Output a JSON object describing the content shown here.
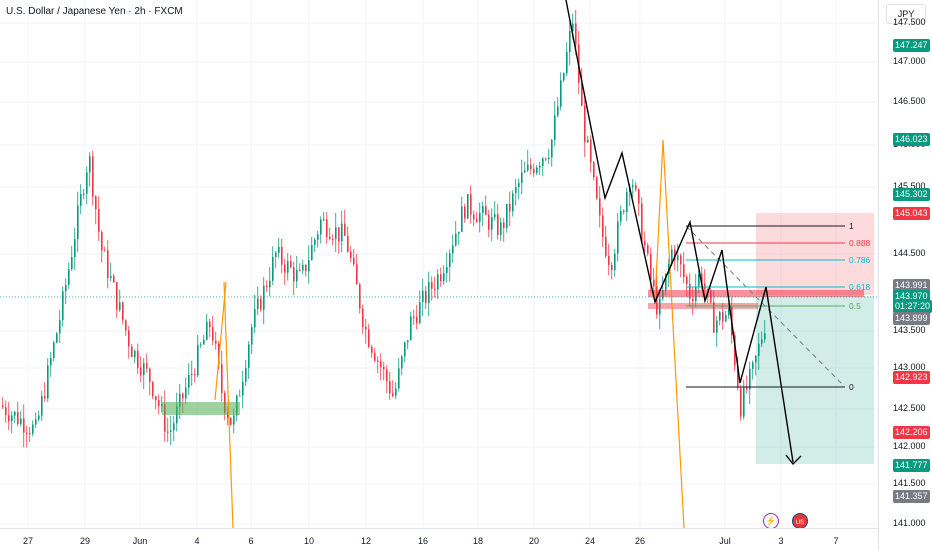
{
  "title": "U.S. Dollar / Japanese Yen · 2h · FXCM",
  "currency_label": "JPY",
  "price_scale": {
    "ticks": [
      "147.500",
      "147.000",
      "146.500",
      "146.000",
      "145.500",
      "144.500",
      "143.500",
      "143.000",
      "142.500",
      "142.000",
      "141.500",
      "141.000"
    ],
    "tags": [
      {
        "label": "147.247",
        "color": "#089981"
      },
      {
        "label": "146.023",
        "color": "#089981"
      },
      {
        "label": "145.302",
        "color": "#089981"
      },
      {
        "label": "145.043",
        "color": "#f23645"
      },
      {
        "label": "143.991",
        "color": "#787b86"
      },
      {
        "label": "143.970",
        "color": "#089981"
      },
      {
        "label": "01:27:20",
        "color": "#089981"
      },
      {
        "label": "143.899",
        "color": "#787b86"
      },
      {
        "label": "142.923",
        "color": "#f23645"
      },
      {
        "label": "142.206",
        "color": "#f23645"
      },
      {
        "label": "141.777",
        "color": "#089981"
      },
      {
        "label": "141.357",
        "color": "#787b86"
      }
    ]
  },
  "time_scale": {
    "ticks": [
      "27",
      "29",
      "Jun",
      "4",
      "6",
      "10",
      "12",
      "16",
      "18",
      "20",
      "24",
      "26",
      "Jul",
      "3",
      "7"
    ]
  },
  "fib_levels": [
    "1",
    "0.888",
    "0.786",
    "0.618",
    "0.5",
    "0"
  ],
  "events": {
    "lightning": "⚡",
    "flag": "US"
  },
  "colors": {
    "up": "#089981",
    "down": "#f23645",
    "fib_blue": "#00bcd4",
    "fib_green": "#4caf50",
    "orange": "#ff9800"
  },
  "chart_data": {
    "type": "candlestick",
    "symbol": "USD/JPY",
    "interval": "2h",
    "y_range": [
      141.0,
      147.6
    ],
    "last_price": 143.97,
    "countdown": "01:27:20"
  }
}
